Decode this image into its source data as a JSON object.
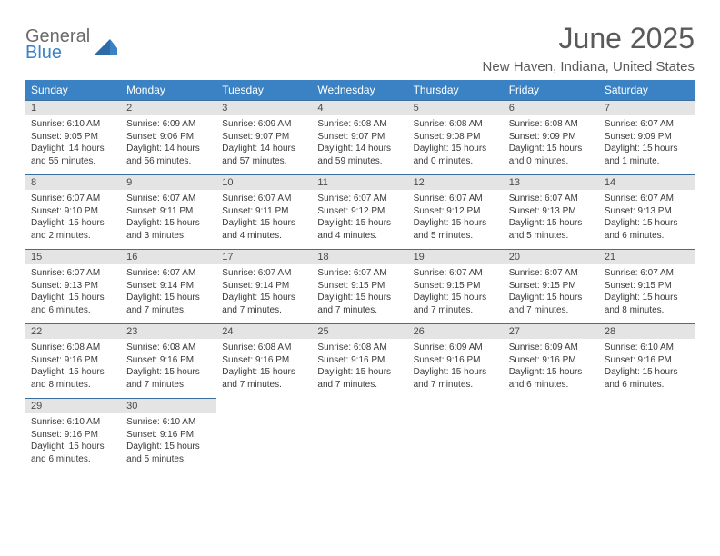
{
  "brand": {
    "top": "General",
    "bottom": "Blue"
  },
  "title": "June 2025",
  "location": "New Haven, Indiana, United States",
  "colors": {
    "header_bg": "#3b82c4",
    "header_text": "#ffffff",
    "daynum_bg": "#e4e4e4",
    "daynum_border": "#3b6fa0",
    "text": "#3a3a3a",
    "title_color": "#5a5a5a"
  },
  "weekdays": [
    "Sunday",
    "Monday",
    "Tuesday",
    "Wednesday",
    "Thursday",
    "Friday",
    "Saturday"
  ],
  "days": [
    {
      "n": "1",
      "sr": "6:10 AM",
      "ss": "9:05 PM",
      "dl": "14 hours and 55 minutes."
    },
    {
      "n": "2",
      "sr": "6:09 AM",
      "ss": "9:06 PM",
      "dl": "14 hours and 56 minutes."
    },
    {
      "n": "3",
      "sr": "6:09 AM",
      "ss": "9:07 PM",
      "dl": "14 hours and 57 minutes."
    },
    {
      "n": "4",
      "sr": "6:08 AM",
      "ss": "9:07 PM",
      "dl": "14 hours and 59 minutes."
    },
    {
      "n": "5",
      "sr": "6:08 AM",
      "ss": "9:08 PM",
      "dl": "15 hours and 0 minutes."
    },
    {
      "n": "6",
      "sr": "6:08 AM",
      "ss": "9:09 PM",
      "dl": "15 hours and 0 minutes."
    },
    {
      "n": "7",
      "sr": "6:07 AM",
      "ss": "9:09 PM",
      "dl": "15 hours and 1 minute."
    },
    {
      "n": "8",
      "sr": "6:07 AM",
      "ss": "9:10 PM",
      "dl": "15 hours and 2 minutes."
    },
    {
      "n": "9",
      "sr": "6:07 AM",
      "ss": "9:11 PM",
      "dl": "15 hours and 3 minutes."
    },
    {
      "n": "10",
      "sr": "6:07 AM",
      "ss": "9:11 PM",
      "dl": "15 hours and 4 minutes."
    },
    {
      "n": "11",
      "sr": "6:07 AM",
      "ss": "9:12 PM",
      "dl": "15 hours and 4 minutes."
    },
    {
      "n": "12",
      "sr": "6:07 AM",
      "ss": "9:12 PM",
      "dl": "15 hours and 5 minutes."
    },
    {
      "n": "13",
      "sr": "6:07 AM",
      "ss": "9:13 PM",
      "dl": "15 hours and 5 minutes."
    },
    {
      "n": "14",
      "sr": "6:07 AM",
      "ss": "9:13 PM",
      "dl": "15 hours and 6 minutes."
    },
    {
      "n": "15",
      "sr": "6:07 AM",
      "ss": "9:13 PM",
      "dl": "15 hours and 6 minutes."
    },
    {
      "n": "16",
      "sr": "6:07 AM",
      "ss": "9:14 PM",
      "dl": "15 hours and 7 minutes."
    },
    {
      "n": "17",
      "sr": "6:07 AM",
      "ss": "9:14 PM",
      "dl": "15 hours and 7 minutes."
    },
    {
      "n": "18",
      "sr": "6:07 AM",
      "ss": "9:15 PM",
      "dl": "15 hours and 7 minutes."
    },
    {
      "n": "19",
      "sr": "6:07 AM",
      "ss": "9:15 PM",
      "dl": "15 hours and 7 minutes."
    },
    {
      "n": "20",
      "sr": "6:07 AM",
      "ss": "9:15 PM",
      "dl": "15 hours and 7 minutes."
    },
    {
      "n": "21",
      "sr": "6:07 AM",
      "ss": "9:15 PM",
      "dl": "15 hours and 8 minutes."
    },
    {
      "n": "22",
      "sr": "6:08 AM",
      "ss": "9:16 PM",
      "dl": "15 hours and 8 minutes."
    },
    {
      "n": "23",
      "sr": "6:08 AM",
      "ss": "9:16 PM",
      "dl": "15 hours and 7 minutes."
    },
    {
      "n": "24",
      "sr": "6:08 AM",
      "ss": "9:16 PM",
      "dl": "15 hours and 7 minutes."
    },
    {
      "n": "25",
      "sr": "6:08 AM",
      "ss": "9:16 PM",
      "dl": "15 hours and 7 minutes."
    },
    {
      "n": "26",
      "sr": "6:09 AM",
      "ss": "9:16 PM",
      "dl": "15 hours and 7 minutes."
    },
    {
      "n": "27",
      "sr": "6:09 AM",
      "ss": "9:16 PM",
      "dl": "15 hours and 6 minutes."
    },
    {
      "n": "28",
      "sr": "6:10 AM",
      "ss": "9:16 PM",
      "dl": "15 hours and 6 minutes."
    },
    {
      "n": "29",
      "sr": "6:10 AM",
      "ss": "9:16 PM",
      "dl": "15 hours and 6 minutes."
    },
    {
      "n": "30",
      "sr": "6:10 AM",
      "ss": "9:16 PM",
      "dl": "15 hours and 5 minutes."
    }
  ],
  "labels": {
    "sunrise": "Sunrise:",
    "sunset": "Sunset:",
    "daylight": "Daylight:"
  }
}
